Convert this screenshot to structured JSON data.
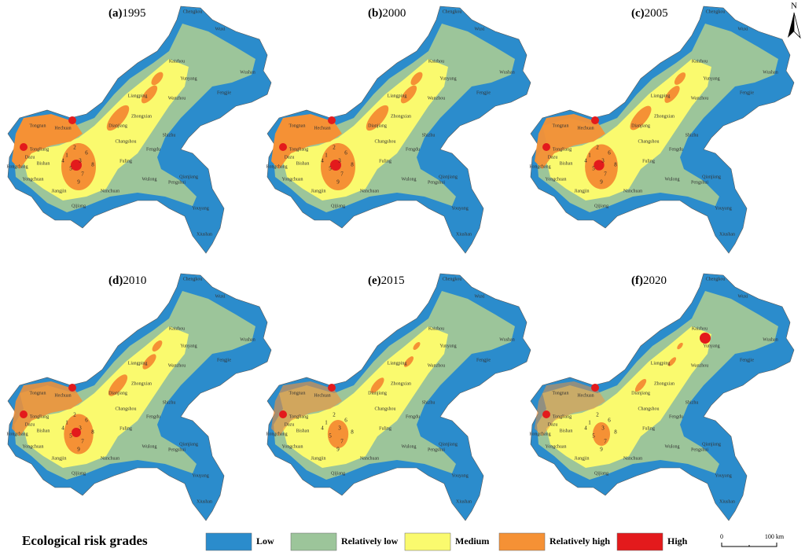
{
  "panels": [
    {
      "label": "(a)",
      "year": "1995"
    },
    {
      "label": "(b)",
      "year": "2000"
    },
    {
      "label": "(c)",
      "year": "2005"
    },
    {
      "label": "(d)",
      "year": "2010"
    },
    {
      "label": "(e)",
      "year": "2015"
    },
    {
      "label": "(f)",
      "year": "2020"
    }
  ],
  "place_names": [
    "Chengkou",
    "Wuxi",
    "Kaizhou",
    "Wushan",
    "Yunyang",
    "Fengjie",
    "Wanzhou",
    "Liangping",
    "Zhongxian",
    "Dianjiang",
    "Shizhu",
    "Fengdu",
    "Changshou",
    "Fuling",
    "Tongnan",
    "Hechuan",
    "Tongliang",
    "Dazu",
    "Bishan",
    "Rongchang",
    "Yongchuan",
    "Jiangjin",
    "Nanchuan",
    "Qijiang",
    "Wulong",
    "Pengshui",
    "Qianjiang",
    "Youyang",
    "Xiushan"
  ],
  "district_numbers": [
    "1",
    "2",
    "3",
    "4",
    "5",
    "6",
    "7",
    "8",
    "9"
  ],
  "legend": {
    "title": "Ecological risk grades",
    "items": [
      {
        "label": "Low",
        "color": "#2b8ccc"
      },
      {
        "label": "Relatively low",
        "color": "#9cc59a"
      },
      {
        "label": "Medium",
        "color": "#fafa6e"
      },
      {
        "label": "Relatively high",
        "color": "#f59135"
      },
      {
        "label": "High",
        "color": "#e31a1c"
      }
    ]
  },
  "scale_bar": {
    "start": "0",
    "end": "100 km"
  },
  "north_arrow": "N"
}
